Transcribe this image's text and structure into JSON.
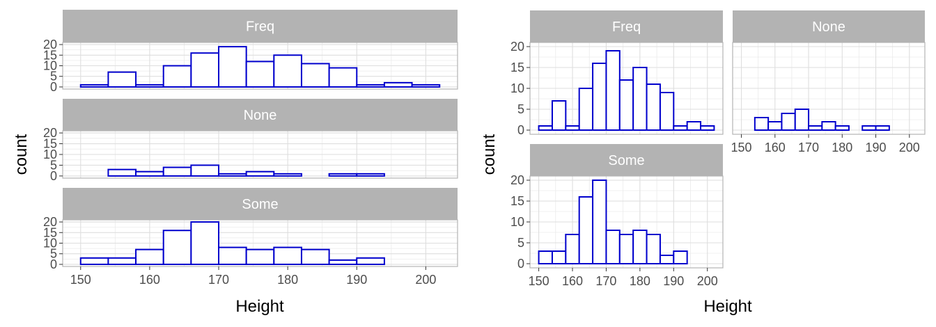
{
  "chart_data": [
    {
      "type": "bar",
      "layout": "facet_grid, one column (3 rows), shared x axis",
      "xlabel": "Height",
      "ylabel": "count",
      "x_ticks": [
        150,
        160,
        170,
        180,
        190,
        200
      ],
      "y_ticks": [
        0,
        5,
        10,
        15,
        20
      ],
      "bin_edges": [
        150,
        154,
        158,
        162,
        166,
        170,
        174,
        178,
        182,
        186,
        190,
        194,
        198,
        202
      ],
      "grid": true,
      "bar_outline_color": "#0000cd",
      "bar_fill_color": "#ffffff",
      "strip_color": "#b3b3b3",
      "panels": [
        {
          "name": "Freq",
          "counts": [
            1,
            7,
            1,
            10,
            16,
            19,
            12,
            15,
            11,
            9,
            1,
            2,
            1
          ]
        },
        {
          "name": "None",
          "counts": [
            0,
            3,
            2,
            4,
            5,
            1,
            2,
            1,
            0,
            1,
            1,
            0,
            0
          ]
        },
        {
          "name": "Some",
          "counts": [
            3,
            3,
            7,
            16,
            20,
            8,
            7,
            8,
            7,
            2,
            3,
            0,
            0
          ]
        }
      ]
    },
    {
      "type": "bar",
      "layout": "facet_wrap, 2 columns",
      "xlabel": "Height",
      "ylabel": "count",
      "x_ticks": [
        150,
        160,
        170,
        180,
        190,
        200
      ],
      "y_ticks": [
        0,
        5,
        10,
        15,
        20
      ],
      "bin_edges": [
        150,
        154,
        158,
        162,
        166,
        170,
        174,
        178,
        182,
        186,
        190,
        194,
        198,
        202
      ],
      "grid": true,
      "bar_outline_color": "#0000cd",
      "bar_fill_color": "#ffffff",
      "strip_color": "#b3b3b3",
      "panels": [
        {
          "name": "Freq",
          "counts": [
            1,
            7,
            1,
            10,
            16,
            19,
            12,
            15,
            11,
            9,
            1,
            2,
            1
          ]
        },
        {
          "name": "None",
          "counts": [
            0,
            3,
            2,
            4,
            5,
            1,
            2,
            1,
            0,
            1,
            1,
            0,
            0
          ]
        },
        {
          "name": "Some",
          "counts": [
            3,
            3,
            7,
            16,
            20,
            8,
            7,
            8,
            7,
            2,
            3,
            0,
            0
          ]
        }
      ]
    }
  ]
}
